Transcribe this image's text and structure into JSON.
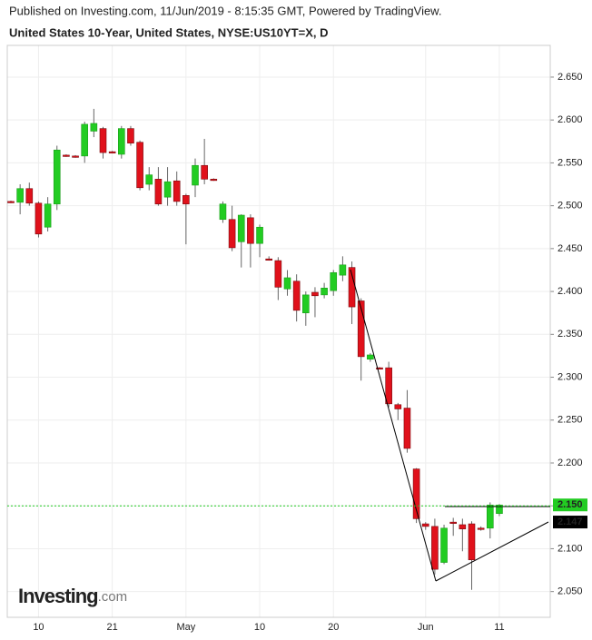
{
  "chart_data": {
    "type": "candlestick",
    "published": "Published on Investing.com, 11/Jun/2019 - 8:15:35 GMT, Powered by TradingView.",
    "title": "United States 10-Year, United States, NYSE:US10YT=X, D",
    "logo": {
      "main": "Investing",
      "suffix": ".com"
    },
    "categories": [
      null,
      null,
      null,
      "10",
      null,
      null,
      null,
      null,
      null,
      null,
      null,
      "21",
      null,
      null,
      null,
      null,
      null,
      null,
      null,
      "May",
      null,
      null,
      null,
      null,
      null,
      null,
      null,
      "10",
      null,
      null,
      null,
      null,
      null,
      null,
      null,
      "20",
      null,
      null,
      null,
      null,
      null,
      null,
      null,
      null,
      null,
      "Jun",
      null,
      null,
      null,
      null,
      null,
      null,
      null,
      "11"
    ],
    "open": [
      2.505,
      2.504,
      2.52,
      2.503,
      2.475,
      2.502,
      2.559,
      2.558,
      2.558,
      2.587,
      2.59,
      2.563,
      2.56,
      2.59,
      2.574,
      2.525,
      2.531,
      2.51,
      2.529,
      2.512,
      2.524,
      2.547,
      2.531,
      2.484,
      2.484,
      2.458,
      2.486,
      2.456,
      2.438,
      2.436,
      2.403,
      2.412,
      2.375,
      2.399,
      2.396,
      2.401,
      2.419,
      2.428,
      2.389,
      2.321,
      2.311,
      2.311,
      2.268,
      2.264,
      2.193,
      2.129,
      2.126,
      2.084,
      2.131,
      2.128,
      2.129,
      2.124,
      2.124,
      2.141
    ],
    "high": [
      2.506,
      2.525,
      2.527,
      2.505,
      2.51,
      2.57,
      2.56,
      2.559,
      2.598,
      2.613,
      2.592,
      2.564,
      2.593,
      2.593,
      2.576,
      2.545,
      2.545,
      2.545,
      2.54,
      2.514,
      2.555,
      2.578,
      2.532,
      2.505,
      2.5,
      2.49,
      2.49,
      2.478,
      2.441,
      2.44,
      2.425,
      2.42,
      2.4,
      2.405,
      2.41,
      2.425,
      2.441,
      2.435,
      2.392,
      2.328,
      2.312,
      2.318,
      2.27,
      2.285,
      2.194,
      2.131,
      2.135,
      2.128,
      2.136,
      2.135,
      2.132,
      2.126,
      2.154,
      2.152
    ],
    "low": [
      2.503,
      2.49,
      2.5,
      2.463,
      2.47,
      2.495,
      2.557,
      2.556,
      2.55,
      2.58,
      2.555,
      2.561,
      2.555,
      2.57,
      2.518,
      2.518,
      2.5,
      2.5,
      2.5,
      2.455,
      2.51,
      2.525,
      2.529,
      2.48,
      2.447,
      2.428,
      2.428,
      2.44,
      2.436,
      2.39,
      2.395,
      2.365,
      2.36,
      2.37,
      2.392,
      2.395,
      2.412,
      2.362,
      2.296,
      2.318,
      2.309,
      2.265,
      2.25,
      2.212,
      2.13,
      2.122,
      2.07,
      2.082,
      2.115,
      2.097,
      2.052,
      2.121,
      2.112,
      2.138
    ],
    "close": [
      2.504,
      2.52,
      2.503,
      2.467,
      2.502,
      2.565,
      2.558,
      2.557,
      2.595,
      2.596,
      2.562,
      2.562,
      2.59,
      2.573,
      2.521,
      2.536,
      2.502,
      2.528,
      2.505,
      2.502,
      2.547,
      2.531,
      2.53,
      2.502,
      2.451,
      2.489,
      2.456,
      2.475,
      2.437,
      2.405,
      2.416,
      2.378,
      2.396,
      2.395,
      2.404,
      2.422,
      2.431,
      2.382,
      2.324,
      2.326,
      2.31,
      2.269,
      2.263,
      2.217,
      2.135,
      2.126,
      2.076,
      2.124,
      2.13,
      2.123,
      2.087,
      2.123,
      2.151,
      2.151
    ],
    "up_color": "#22cc22",
    "down_color": "#e0111b",
    "ylim": [
      2.02,
      2.687
    ],
    "yticks": [
      {
        "value": 2.05,
        "label": "2.050"
      },
      {
        "value": 2.1,
        "label": "2.100"
      },
      {
        "value": 2.15,
        "label": "2.150"
      },
      {
        "value": 2.2,
        "label": "2.200"
      },
      {
        "value": 2.25,
        "label": "2.250"
      },
      {
        "value": 2.3,
        "label": "2.300"
      },
      {
        "value": 2.35,
        "label": "2.350"
      },
      {
        "value": 2.4,
        "label": "2.400"
      },
      {
        "value": 2.45,
        "label": "2.450"
      },
      {
        "value": 2.5,
        "label": "2.500"
      },
      {
        "value": 2.55,
        "label": "2.550"
      },
      {
        "value": 2.6,
        "label": "2.600"
      },
      {
        "value": 2.65,
        "label": "2.650"
      }
    ],
    "grid": true,
    "price_labels": [
      {
        "value": 2.15,
        "label": "2.150",
        "color": "#22cc22"
      },
      {
        "value": 2.147,
        "label": "2.147",
        "color": "#000000"
      }
    ]
  }
}
